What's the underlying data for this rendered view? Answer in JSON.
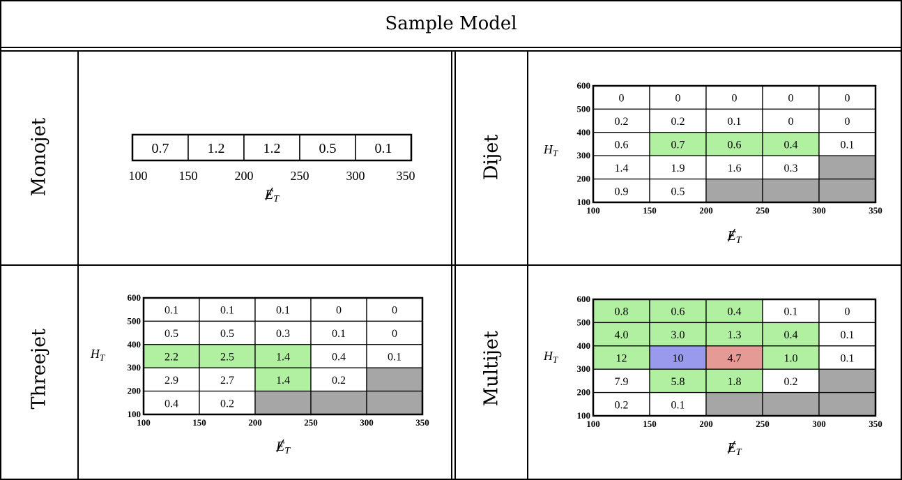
{
  "title": "Sample Model",
  "colors": {
    "green": "#b0f0a0",
    "blue": "#9999ee",
    "red": "#e69a95",
    "gray": "#a6a6a6",
    "white": "#ffffff"
  },
  "chart_data": [
    {
      "type": "table",
      "panel": "Monojet",
      "x_label": "E̸T",
      "x_edges": [
        100,
        150,
        200,
        250,
        300,
        350
      ],
      "cells": [
        [
          "0.7",
          "1.2",
          "1.2",
          "0.5",
          "0.1"
        ]
      ],
      "colors": [
        [
          "white",
          "white",
          "white",
          "white",
          "white"
        ]
      ]
    },
    {
      "type": "heatmap",
      "panel": "Dijet",
      "x_label": "E̸T",
      "y_label": "HT",
      "x_edges": [
        100,
        150,
        200,
        250,
        300,
        350
      ],
      "y_edges": [
        100,
        200,
        300,
        400,
        500,
        600
      ],
      "rows_top_to_bottom": [
        [
          "0",
          "0",
          "0",
          "0",
          "0"
        ],
        [
          "0.2",
          "0.2",
          "0.1",
          "0",
          "0"
        ],
        [
          "0.6",
          "0.7",
          "0.6",
          "0.4",
          "0.1"
        ],
        [
          "1.4",
          "1.9",
          "1.6",
          "0.3",
          ""
        ],
        [
          "0.9",
          "0.5",
          "",
          "",
          ""
        ]
      ],
      "colors": [
        [
          "white",
          "white",
          "white",
          "white",
          "white"
        ],
        [
          "white",
          "white",
          "white",
          "white",
          "white"
        ],
        [
          "white",
          "green",
          "green",
          "green",
          "white"
        ],
        [
          "white",
          "white",
          "white",
          "white",
          "gray"
        ],
        [
          "white",
          "white",
          "gray",
          "gray",
          "gray"
        ]
      ]
    },
    {
      "type": "heatmap",
      "panel": "Threejet",
      "x_label": "E̸T",
      "y_label": "HT",
      "x_edges": [
        100,
        150,
        200,
        250,
        300,
        350
      ],
      "y_edges": [
        100,
        200,
        300,
        400,
        500,
        600
      ],
      "rows_top_to_bottom": [
        [
          "0.1",
          "0.1",
          "0.1",
          "0",
          "0"
        ],
        [
          "0.5",
          "0.5",
          "0.3",
          "0.1",
          "0"
        ],
        [
          "2.2",
          "2.5",
          "1.4",
          "0.4",
          "0.1"
        ],
        [
          "2.9",
          "2.7",
          "1.4",
          "0.2",
          ""
        ],
        [
          "0.4",
          "0.2",
          "",
          "",
          ""
        ]
      ],
      "colors": [
        [
          "white",
          "white",
          "white",
          "white",
          "white"
        ],
        [
          "white",
          "white",
          "white",
          "white",
          "white"
        ],
        [
          "green",
          "green",
          "green",
          "white",
          "white"
        ],
        [
          "white",
          "white",
          "green",
          "white",
          "gray"
        ],
        [
          "white",
          "white",
          "gray",
          "gray",
          "gray"
        ]
      ]
    },
    {
      "type": "heatmap",
      "panel": "Multijet",
      "x_label": "E̸T",
      "y_label": "HT",
      "x_edges": [
        100,
        150,
        200,
        250,
        300,
        350
      ],
      "y_edges": [
        100,
        200,
        300,
        400,
        500,
        600
      ],
      "rows_top_to_bottom": [
        [
          "0.8",
          "0.6",
          "0.4",
          "0.1",
          "0"
        ],
        [
          "4.0",
          "3.0",
          "1.3",
          "0.4",
          "0.1"
        ],
        [
          "12",
          "10",
          "4.7",
          "1.0",
          "0.1"
        ],
        [
          "7.9",
          "5.8",
          "1.8",
          "0.2",
          ""
        ],
        [
          "0.2",
          "0.1",
          "",
          "",
          ""
        ]
      ],
      "colors": [
        [
          "green",
          "green",
          "green",
          "white",
          "white"
        ],
        [
          "green",
          "green",
          "green",
          "green",
          "white"
        ],
        [
          "green",
          "blue",
          "red",
          "green",
          "white"
        ],
        [
          "white",
          "green",
          "green",
          "white",
          "gray"
        ],
        [
          "white",
          "white",
          "gray",
          "gray",
          "gray"
        ]
      ]
    }
  ]
}
